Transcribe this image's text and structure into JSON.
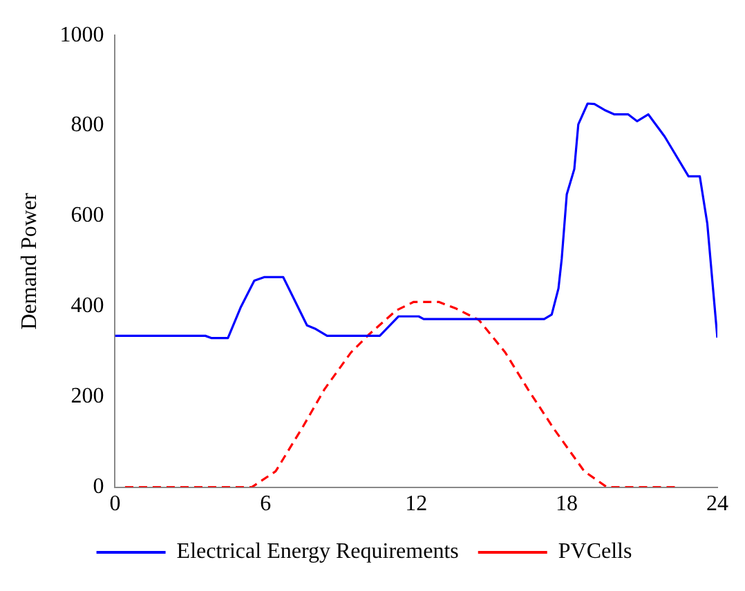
{
  "chart_data": {
    "type": "line",
    "ylabel": "Demand Power",
    "xlim": [
      0,
      24
    ],
    "xticks": [
      0,
      6,
      12,
      18,
      24
    ],
    "ylim": [
      0,
      1000
    ],
    "yticks": [
      0,
      200,
      400,
      600,
      800,
      1000
    ],
    "grid": false,
    "legend": "bottom",
    "marker": "none",
    "series": [
      {
        "name": "Electrical Energy Requirements",
        "color": "#0000ff",
        "line_style": "solid",
        "x": [
          0,
          3.6,
          3.85,
          4.5,
          5.0,
          5.55,
          5.96,
          6.7,
          7.65,
          8.0,
          8.45,
          10.55,
          11.3,
          12.1,
          12.3,
          17.1,
          17.4,
          17.67,
          17.8,
          18.0,
          18.3,
          18.46,
          18.83,
          19.1,
          19.5,
          19.9,
          20.45,
          20.8,
          21.25,
          21.9,
          22.85,
          23.3,
          23.6,
          24
        ],
        "values": [
          335,
          335,
          330,
          330,
          397,
          457,
          465,
          465,
          358,
          350,
          335,
          335,
          378,
          378,
          372,
          372,
          382,
          440,
          506,
          648,
          704,
          803,
          849,
          848,
          835,
          825,
          825,
          810,
          825,
          776,
          688,
          688,
          583,
          331
        ]
      },
      {
        "name": "PVCells",
        "color": "#ff0000",
        "line_style": "dashed",
        "x": [
          0.4,
          5.45,
          6.4,
          7.5,
          8.35,
          9.4,
          10.1,
          11.2,
          11.9,
          12.2,
          12.9,
          13.6,
          14.5,
          15.55,
          16.45,
          17.5,
          18.7,
          19.6,
          22.5
        ],
        "values": [
          0,
          0,
          35,
          135,
          217,
          298,
          337,
          391,
          410,
          410,
          410,
          395,
          370,
          298,
          217,
          128,
          35,
          0,
          0
        ]
      }
    ]
  }
}
